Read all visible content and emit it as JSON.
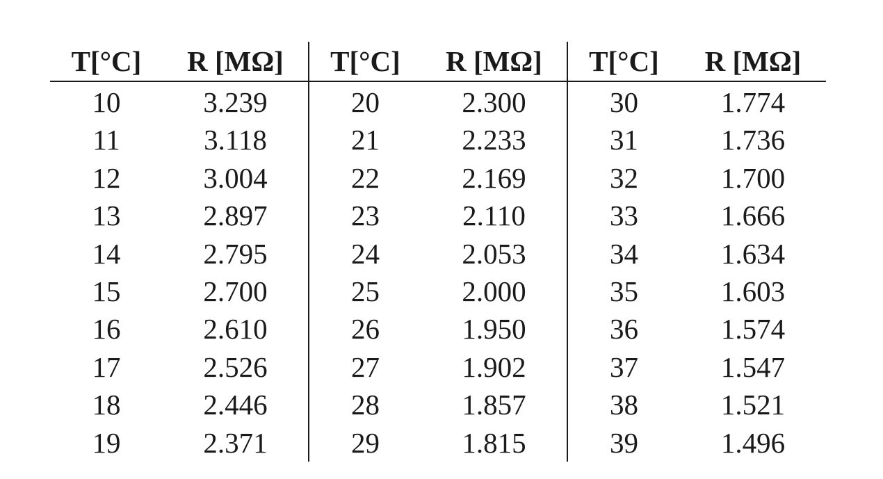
{
  "headers": [
    "T[°C]",
    "R [MΩ]",
    "T[°C]",
    "R [MΩ]",
    "T[°C]",
    "R [MΩ]"
  ],
  "rows": [
    [
      "10",
      "3.239",
      "20",
      "2.300",
      "30",
      "1.774"
    ],
    [
      "11",
      "3.118",
      "21",
      "2.233",
      "31",
      "1.736"
    ],
    [
      "12",
      "3.004",
      "22",
      "2.169",
      "32",
      "1.700"
    ],
    [
      "13",
      "2.897",
      "23",
      "2.110",
      "33",
      "1.666"
    ],
    [
      "14",
      "2.795",
      "24",
      "2.053",
      "34",
      "1.634"
    ],
    [
      "15",
      "2.700",
      "25",
      "2.000",
      "35",
      "1.603"
    ],
    [
      "16",
      "2.610",
      "26",
      "1.950",
      "36",
      "1.574"
    ],
    [
      "17",
      "2.526",
      "27",
      "1.902",
      "37",
      "1.547"
    ],
    [
      "18",
      "2.446",
      "28",
      "1.857",
      "38",
      "1.521"
    ],
    [
      "19",
      "2.371",
      "29",
      "1.815",
      "39",
      "1.496"
    ]
  ]
}
